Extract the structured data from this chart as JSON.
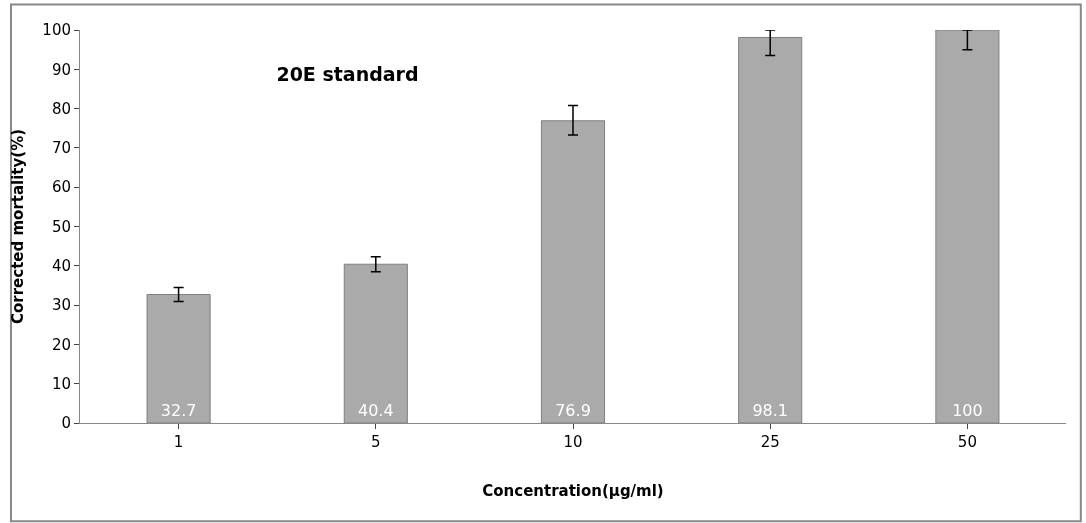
{
  "chart_data": {
    "type": "bar",
    "title": "20E standard",
    "xlabel": "Concentration(µg/ml)",
    "ylabel": "Corrected mortality(%)",
    "categories": [
      "1",
      "5",
      "10",
      "25",
      "50"
    ],
    "values": [
      32.7,
      40.4,
      76.9,
      98.1,
      100
    ],
    "errors": [
      [
        30.9,
        34.5
      ],
      [
        38.5,
        42.3
      ],
      [
        73.3,
        80.8
      ],
      [
        93.5,
        100
      ],
      [
        95,
        100
      ]
    ],
    "color": "#aaaaaa",
    "ylim": [
      0,
      100
    ],
    "yticks": [
      0,
      10,
      20,
      30,
      40,
      50,
      60,
      70,
      80,
      90,
      100
    ],
    "data_labels": true
  }
}
